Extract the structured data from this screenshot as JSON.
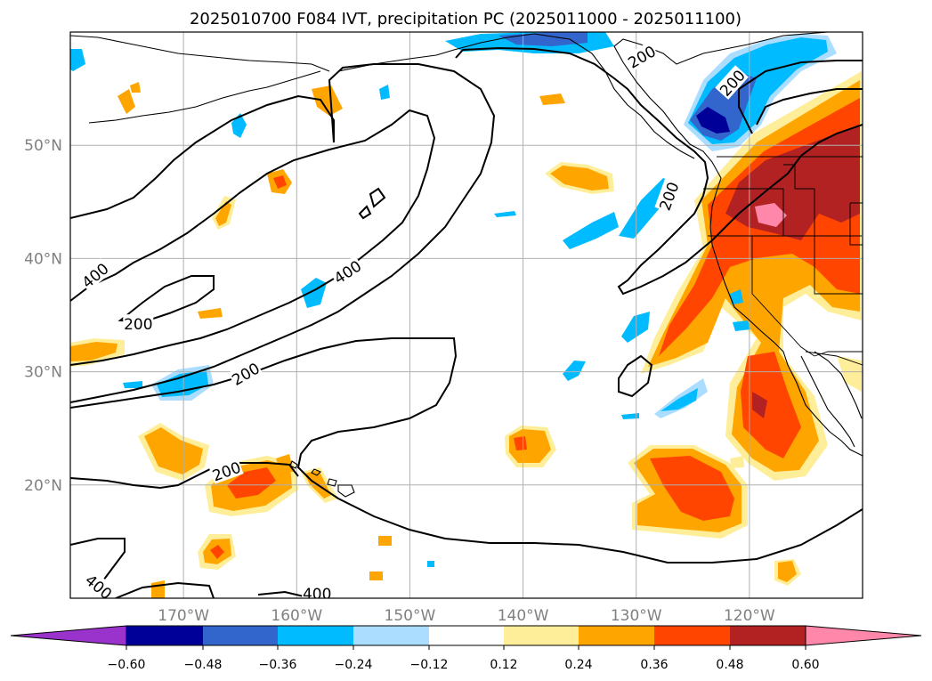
{
  "title": "2025010700 F084 IVT, precipitation PC (2025011000 - 2025011100)",
  "map": {
    "projection": "lon-lat",
    "lon_range": [
      -180,
      -110
    ],
    "lat_range": [
      10,
      60
    ],
    "lon_ticks": [
      {
        "value": -170,
        "label": "170°W"
      },
      {
        "value": -160,
        "label": "160°W"
      },
      {
        "value": -150,
        "label": "150°W"
      },
      {
        "value": -140,
        "label": "140°W"
      },
      {
        "value": -130,
        "label": "130°W"
      },
      {
        "value": -120,
        "label": "120°W"
      }
    ],
    "lat_ticks": [
      {
        "value": 20,
        "label": "20°N"
      },
      {
        "value": 30,
        "label": "30°N"
      },
      {
        "value": 40,
        "label": "40°N"
      },
      {
        "value": 50,
        "label": "50°N"
      }
    ],
    "grid": true,
    "contour_labels": [
      {
        "text": "400",
        "lon": -177.8,
        "lat": 38.5,
        "rot": -40
      },
      {
        "text": "200",
        "lon": -174.0,
        "lat": 34.2,
        "rot": 0
      },
      {
        "text": "400",
        "lon": -155.5,
        "lat": 38.8,
        "rot": -33
      },
      {
        "text": "200",
        "lon": -164.5,
        "lat": 29.8,
        "rot": -30
      },
      {
        "text": "200",
        "lon": -166.2,
        "lat": 21.2,
        "rot": -20
      },
      {
        "text": "200",
        "lon": -121.5,
        "lat": 55.5,
        "rot": -48
      },
      {
        "text": "200",
        "lon": -129.5,
        "lat": 57.8,
        "rot": -30
      },
      {
        "text": "200",
        "lon": -127.1,
        "lat": 45.5,
        "rot": -70
      },
      {
        "text": "400",
        "lon": -177.5,
        "lat": 11.0,
        "rot": 40
      },
      {
        "text": "400",
        "lon": -158.2,
        "lat": 10.4,
        "rot": 0
      }
    ]
  },
  "colorbar": {
    "ticks": [
      "−0.60",
      "−0.48",
      "−0.36",
      "−0.24",
      "−0.12",
      "0.12",
      "0.24",
      "0.36",
      "0.48",
      "0.60"
    ],
    "colors": [
      "#9933cc",
      "#000099",
      "#3366cc",
      "#00bbff",
      "#aaddff",
      "#ffffff",
      "#ffee99",
      "#ffa500",
      "#ff4500",
      "#b22222",
      "#ff88aa"
    ]
  },
  "colors": {
    "neg_light": "#aaddff",
    "neg_cyan": "#00bbff",
    "neg_blue": "#3366cc",
    "neg_navy": "#000099",
    "pos_yellow": "#ffee99",
    "pos_orange": "#ffa500",
    "pos_red": "#ff4500",
    "pos_darkred": "#b22222",
    "pos_pink": "#ff88aa",
    "grid": "#b0b0b0"
  }
}
